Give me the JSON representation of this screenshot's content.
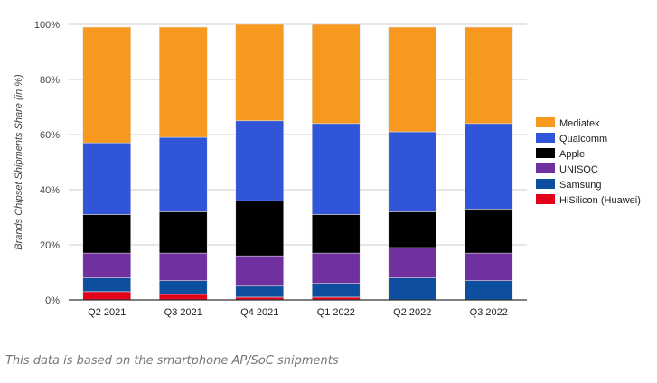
{
  "chart_data": {
    "type": "bar",
    "stacked": true,
    "categories": [
      "Q2 2021",
      "Q3 2021",
      "Q4 2021",
      "Q1 2022",
      "Q2 2022",
      "Q3 2022"
    ],
    "ylabel": "Brands Chipset Shipments Share (in %)",
    "xlabel": "",
    "ylim": [
      0,
      100
    ],
    "yticks": [
      "0%",
      "20%",
      "40%",
      "60%",
      "80%",
      "100%"
    ],
    "grid": true,
    "legend_position": "right",
    "series": [
      {
        "name": "HiSilicon (Huawei)",
        "color": "#e3001b",
        "values": [
          3,
          2,
          1,
          1,
          0,
          0
        ]
      },
      {
        "name": "Samsung",
        "color": "#0d4f9e",
        "values": [
          5,
          5,
          4,
          5,
          8,
          7
        ]
      },
      {
        "name": "UNISOC",
        "color": "#7030a0",
        "values": [
          9,
          10,
          11,
          11,
          11,
          10
        ]
      },
      {
        "name": "Apple",
        "color": "#000000",
        "values": [
          14,
          15,
          20,
          14,
          13,
          16
        ]
      },
      {
        "name": "Qualcomm",
        "color": "#3155d9",
        "values": [
          26,
          27,
          29,
          33,
          29,
          31
        ]
      },
      {
        "name": "Mediatek",
        "color": "#f7991f",
        "values": [
          42,
          40,
          35,
          36,
          38,
          35
        ]
      }
    ]
  },
  "caption": "This data is based on the smartphone AP/SoC shipments"
}
